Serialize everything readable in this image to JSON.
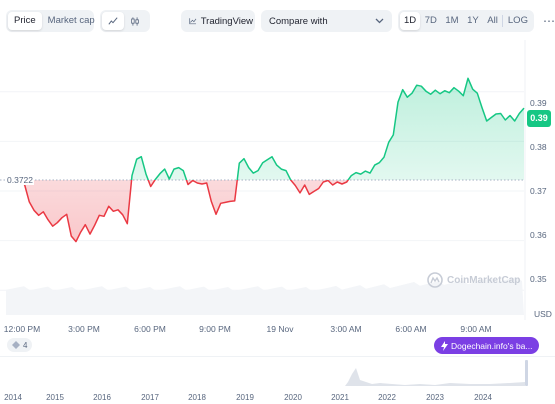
{
  "toolbar": {
    "segment_price": "Price",
    "segment_market_cap": "Market cap",
    "chart_type_line_icon": "line-chart-icon",
    "chart_type_candle_icon": "candlestick-icon",
    "tradingview_label": "TradingView",
    "compare_label": "Compare with",
    "timeframes": [
      "1D",
      "7D",
      "1M",
      "1Y",
      "All"
    ],
    "active_timeframe": "1D",
    "log_label": "LOG",
    "more_icon": "more-icon"
  },
  "chart": {
    "current_price_label": "0.39",
    "open_price_label": "0.3722",
    "y_ticks": [
      "0.39",
      "0.38",
      "0.37",
      "0.36",
      "0.35"
    ],
    "x_ticks": [
      "12:00 PM",
      "3:00 PM",
      "6:00 PM",
      "9:00 PM",
      "19 Nov",
      "3:00 AM",
      "6:00 AM",
      "9:00 AM"
    ],
    "currency": "USD",
    "watermark": "CoinMarketCap",
    "events_count": "4",
    "news_label": "Dogechain.info's ba...",
    "up_color": "#16c784",
    "down_color": "#ea3943"
  },
  "chart_data": {
    "type": "line",
    "baseline": 0.3722,
    "ylim": [
      0.345,
      0.398
    ],
    "x_ticks": [
      "12:00 PM",
      "3:00 PM",
      "6:00 PM",
      "9:00 PM",
      "19 Nov",
      "3:00 AM",
      "6:00 AM",
      "9:00 AM"
    ],
    "values": [
      0.3722,
      0.3712,
      0.3678,
      0.3661,
      0.3651,
      0.3658,
      0.3642,
      0.3629,
      0.3636,
      0.3646,
      0.3653,
      0.3609,
      0.3598,
      0.3617,
      0.3632,
      0.3613,
      0.3631,
      0.3651,
      0.3649,
      0.3669,
      0.3659,
      0.3662,
      0.3652,
      0.3634,
      0.3731,
      0.3764,
      0.3769,
      0.3734,
      0.3709,
      0.3723,
      0.3735,
      0.3744,
      0.3724,
      0.3744,
      0.3747,
      0.3741,
      0.3713,
      0.3721,
      0.3716,
      0.3714,
      0.3716,
      0.3679,
      0.3653,
      0.3675,
      0.3677,
      0.3679,
      0.368,
      0.3756,
      0.3765,
      0.3747,
      0.3736,
      0.3741,
      0.3757,
      0.3763,
      0.3769,
      0.3752,
      0.3744,
      0.3741,
      0.3722,
      0.3711,
      0.3696,
      0.3712,
      0.3693,
      0.3699,
      0.3705,
      0.3718,
      0.3721,
      0.3712,
      0.3718,
      0.3714,
      0.3718,
      0.3731,
      0.3737,
      0.3734,
      0.374,
      0.3736,
      0.3752,
      0.3757,
      0.3768,
      0.3798,
      0.3813,
      0.3879,
      0.3904,
      0.3889,
      0.3897,
      0.3913,
      0.3911,
      0.3901,
      0.3895,
      0.3903,
      0.3896,
      0.3902,
      0.3898,
      0.3908,
      0.3901,
      0.3892,
      0.3927,
      0.3905,
      0.3897,
      0.3868,
      0.3841,
      0.3848,
      0.3855,
      0.3856,
      0.3843,
      0.3852,
      0.3841,
      0.3856,
      0.3867
    ]
  },
  "overview": {
    "years": [
      "2014",
      "2015",
      "2016",
      "2017",
      "2018",
      "2019",
      "2020",
      "2021",
      "2022",
      "2023",
      "2024"
    ]
  }
}
